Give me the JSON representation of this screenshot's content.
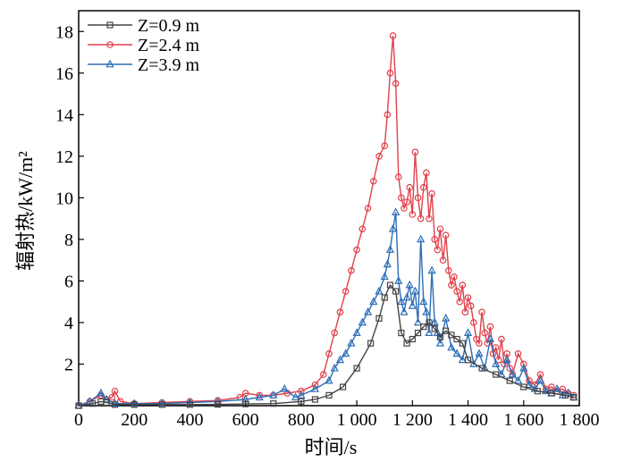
{
  "chart_data": {
    "type": "line",
    "title": "",
    "xlabel": "时间/s",
    "ylabel": "辐射热/kW/m²",
    "xlim": [
      0,
      1800
    ],
    "ylim": [
      0,
      19
    ],
    "x_ticks": [
      0,
      200,
      400,
      600,
      800,
      1000,
      1200,
      1400,
      1600,
      1800
    ],
    "x_tick_labels": [
      "0",
      "200",
      "400",
      "600",
      "800",
      "1 000",
      "1 200",
      "1 400",
      "1 600",
      "1 800"
    ],
    "y_ticks": [
      2,
      4,
      6,
      8,
      10,
      12,
      14,
      16,
      18
    ],
    "y_tick_labels": [
      "2",
      "4",
      "6",
      "8",
      "10",
      "12",
      "14",
      "16",
      "18"
    ],
    "legend_position": "top-left",
    "series": [
      {
        "name": "Z=0.9 m",
        "color": "#444444",
        "marker": "square",
        "x": [
          0,
          50,
          80,
          100,
          130,
          200,
          300,
          400,
          500,
          600,
          700,
          800,
          850,
          900,
          950,
          1000,
          1050,
          1080,
          1100,
          1120,
          1140,
          1160,
          1180,
          1200,
          1220,
          1240,
          1260,
          1280,
          1300,
          1320,
          1340,
          1360,
          1380,
          1400,
          1450,
          1500,
          1550,
          1600,
          1650,
          1700,
          1750,
          1780
        ],
        "y": [
          0.0,
          0.1,
          0.2,
          0.15,
          0.05,
          0.05,
          0.05,
          0.05,
          0.06,
          0.08,
          0.1,
          0.2,
          0.3,
          0.5,
          0.9,
          1.8,
          3.0,
          4.2,
          5.2,
          5.8,
          5.5,
          3.5,
          3.0,
          3.2,
          3.5,
          3.8,
          4.0,
          3.7,
          3.3,
          3.6,
          3.4,
          3.2,
          3.0,
          2.2,
          1.8,
          1.5,
          1.2,
          0.9,
          0.7,
          0.6,
          0.5,
          0.4
        ]
      },
      {
        "name": "Z=2.4 m",
        "color": "#e0404a",
        "marker": "circle",
        "x": [
          0,
          40,
          80,
          100,
          120,
          130,
          150,
          200,
          300,
          400,
          500,
          580,
          600,
          650,
          700,
          750,
          800,
          850,
          880,
          900,
          920,
          940,
          960,
          980,
          1000,
          1020,
          1040,
          1060,
          1080,
          1100,
          1110,
          1120,
          1130,
          1140,
          1150,
          1160,
          1170,
          1180,
          1190,
          1200,
          1210,
          1220,
          1230,
          1240,
          1250,
          1260,
          1270,
          1280,
          1290,
          1300,
          1310,
          1320,
          1330,
          1340,
          1350,
          1360,
          1370,
          1380,
          1390,
          1400,
          1410,
          1420,
          1430,
          1440,
          1450,
          1460,
          1470,
          1480,
          1490,
          1500,
          1510,
          1520,
          1530,
          1540,
          1550,
          1560,
          1580,
          1600,
          1620,
          1640,
          1660,
          1680,
          1700,
          1720,
          1740,
          1760,
          1780
        ],
        "y": [
          0.0,
          0.2,
          0.5,
          0.3,
          0.4,
          0.7,
          0.2,
          0.1,
          0.15,
          0.2,
          0.25,
          0.4,
          0.6,
          0.5,
          0.5,
          0.6,
          0.7,
          1.0,
          1.5,
          2.5,
          3.5,
          4.5,
          5.5,
          6.5,
          7.5,
          8.5,
          9.5,
          10.8,
          12.0,
          12.5,
          14.0,
          16.0,
          17.8,
          15.5,
          11.0,
          10.0,
          9.5,
          9.8,
          10.5,
          9.2,
          12.2,
          10.0,
          9.0,
          10.5,
          11.2,
          9.0,
          10.2,
          8.0,
          7.5,
          8.5,
          7.0,
          8.2,
          6.5,
          5.8,
          6.2,
          5.5,
          5.0,
          5.8,
          4.5,
          5.2,
          4.8,
          4.0,
          3.2,
          3.0,
          4.5,
          3.5,
          3.0,
          3.8,
          2.5,
          2.8,
          2.2,
          3.2,
          2.0,
          2.5,
          1.8,
          1.5,
          2.5,
          2.0,
          1.2,
          1.0,
          1.5,
          0.8,
          0.9,
          0.7,
          0.8,
          0.6,
          0.5
        ]
      },
      {
        "name": "Z=3.9 m",
        "color": "#2b6db5",
        "marker": "triangle",
        "x": [
          0,
          40,
          80,
          100,
          130,
          200,
          300,
          400,
          500,
          600,
          650,
          700,
          740,
          780,
          800,
          850,
          900,
          920,
          940,
          960,
          980,
          1000,
          1020,
          1040,
          1060,
          1080,
          1100,
          1110,
          1120,
          1130,
          1140,
          1150,
          1160,
          1170,
          1180,
          1190,
          1200,
          1210,
          1220,
          1230,
          1240,
          1250,
          1260,
          1270,
          1280,
          1290,
          1300,
          1320,
          1340,
          1360,
          1380,
          1400,
          1420,
          1440,
          1460,
          1480,
          1500,
          1520,
          1540,
          1560,
          1580,
          1600,
          1620,
          1640,
          1660,
          1680,
          1700,
          1720,
          1740,
          1760,
          1780
        ],
        "y": [
          0.0,
          0.2,
          0.6,
          0.3,
          0.1,
          0.1,
          0.1,
          0.15,
          0.2,
          0.3,
          0.4,
          0.5,
          0.8,
          0.4,
          0.5,
          0.8,
          1.2,
          1.8,
          2.2,
          2.5,
          3.0,
          3.5,
          4.0,
          4.5,
          5.0,
          5.5,
          6.2,
          6.8,
          7.5,
          8.5,
          9.3,
          6.0,
          5.0,
          4.5,
          5.2,
          5.8,
          4.8,
          5.5,
          4.0,
          8.0,
          5.0,
          4.5,
          3.5,
          6.5,
          4.0,
          3.5,
          3.0,
          4.2,
          2.8,
          2.5,
          2.2,
          3.5,
          2.0,
          2.5,
          1.8,
          3.2,
          2.0,
          1.5,
          2.2,
          1.5,
          1.2,
          1.8,
          1.0,
          0.8,
          1.2,
          0.7,
          0.6,
          0.8,
          0.5,
          0.6,
          0.4
        ]
      }
    ]
  }
}
